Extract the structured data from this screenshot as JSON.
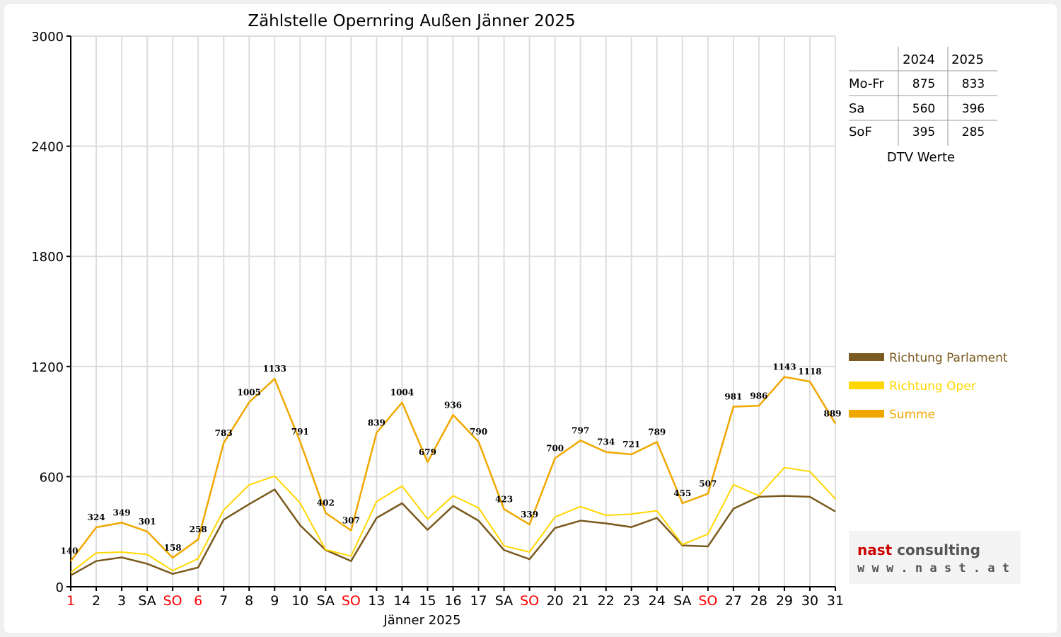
{
  "chart_data": {
    "type": "line",
    "title": "Zählstelle Opernring Außen Jänner 2025",
    "xlabel": "Jänner 2025",
    "ylabel": "",
    "ylim": [
      0,
      3000
    ],
    "yticks": [
      0,
      600,
      1200,
      1800,
      2400,
      3000
    ],
    "grid": true,
    "legend_position": "right",
    "categories": [
      "1",
      "2",
      "3",
      "SA",
      "SO",
      "6",
      "7",
      "8",
      "9",
      "10",
      "SA",
      "SO",
      "13",
      "14",
      "15",
      "16",
      "17",
      "SA",
      "SO",
      "20",
      "21",
      "22",
      "23",
      "24",
      "SA",
      "SO",
      "27",
      "28",
      "29",
      "30",
      "31"
    ],
    "category_colors": [
      "#ff0000",
      "#000000",
      "#000000",
      "#000000",
      "#ff0000",
      "#ff0000",
      "#000000",
      "#000000",
      "#000000",
      "#000000",
      "#000000",
      "#ff0000",
      "#000000",
      "#000000",
      "#000000",
      "#000000",
      "#000000",
      "#000000",
      "#ff0000",
      "#000000",
      "#000000",
      "#000000",
      "#000000",
      "#000000",
      "#000000",
      "#ff0000",
      "#000000",
      "#000000",
      "#000000",
      "#000000",
      "#000000"
    ],
    "series": [
      {
        "name": "Richtung Parlament",
        "color": "#7a5a1e",
        "values": [
          62,
          140,
          160,
          125,
          70,
          105,
          365,
          450,
          530,
          335,
          200,
          140,
          375,
          455,
          310,
          440,
          360,
          200,
          150,
          320,
          360,
          345,
          325,
          375,
          225,
          220,
          425,
          490,
          495,
          490,
          410
        ]
      },
      {
        "name": "Richtung Oper",
        "color": "#ffd700",
        "values": [
          78,
          184,
          189,
          176,
          88,
          153,
          418,
          555,
          603,
          456,
          202,
          167,
          464,
          549,
          369,
          496,
          430,
          223,
          189,
          380,
          437,
          389,
          396,
          414,
          230,
          287,
          556,
          496,
          649,
          628,
          479
        ]
      },
      {
        "name": "Summe",
        "color": "#f0a800",
        "values": [
          140,
          324,
          349,
          301,
          158,
          258,
          783,
          1005,
          1133,
          791,
          402,
          307,
          839,
          1004,
          679,
          936,
          790,
          423,
          339,
          700,
          797,
          734,
          721,
          789,
          455,
          507,
          981,
          986,
          1143,
          1118,
          889
        ]
      }
    ],
    "data_labels": [
      "140",
      "324",
      "349",
      "301",
      "158",
      "258",
      "783",
      "1005",
      "1133",
      "791",
      "402",
      "307",
      "839",
      "1004",
      "679",
      "936",
      "790",
      "423",
      "339",
      "700",
      "797",
      "734",
      "721",
      "789",
      "455",
      "507",
      "981",
      "986",
      "1143",
      "1118",
      "889"
    ]
  },
  "dtv_table": {
    "headers": [
      "",
      "2024",
      "2025"
    ],
    "rows": [
      {
        "label": "Mo-Fr",
        "v2024": "875",
        "v2025": "833"
      },
      {
        "label": "Sa",
        "v2024": "560",
        "v2025": "396"
      },
      {
        "label": "SoF",
        "v2024": "395",
        "v2025": "285"
      }
    ],
    "caption": "DTV Werte"
  },
  "logo": {
    "brand_part1": "nast",
    "brand_part2": " consulting",
    "url": "w w w . n a s t . a t",
    "color1": "#cc0000",
    "color2": "#555555"
  }
}
